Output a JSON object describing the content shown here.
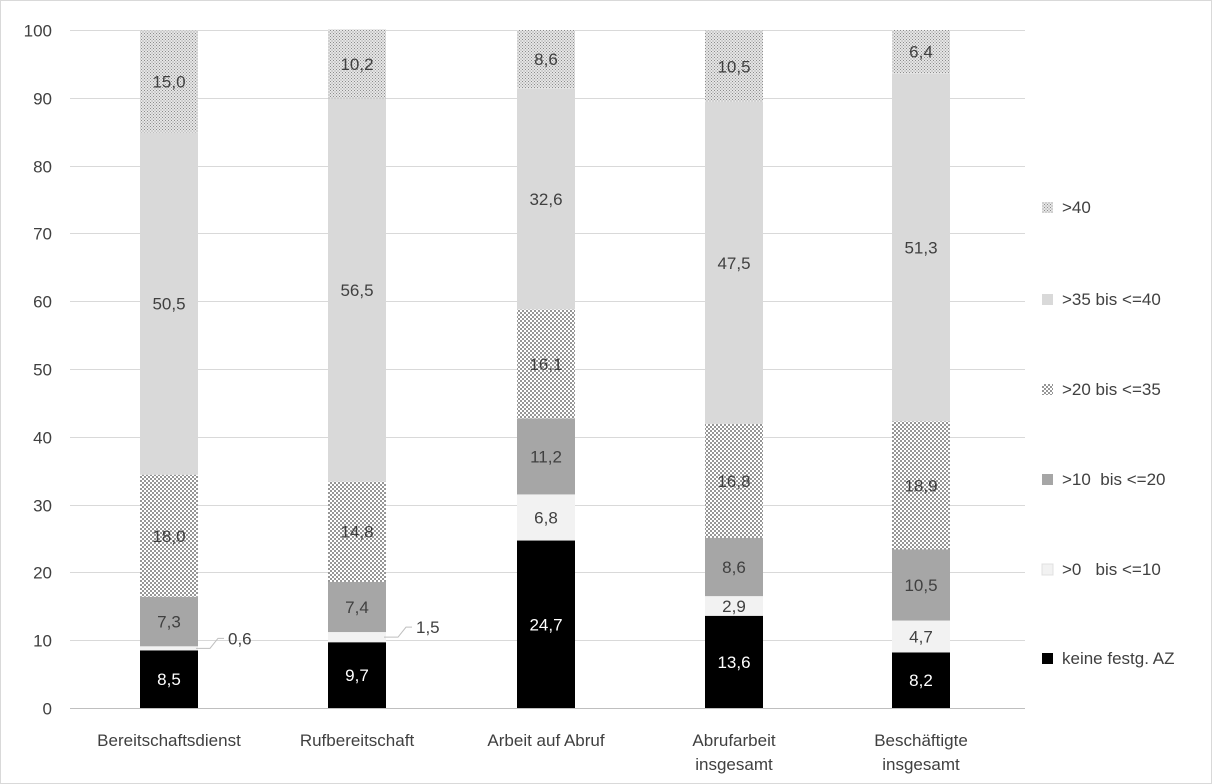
{
  "chart_data": {
    "type": "bar",
    "stacked": true,
    "title": "",
    "xlabel": "",
    "ylabel": "",
    "ylim": [
      0,
      100
    ],
    "yticks": [
      0,
      10,
      20,
      30,
      40,
      50,
      60,
      70,
      80,
      90,
      100
    ],
    "grid": true,
    "legend_position": "right",
    "categories": [
      [
        "Bereitschaftsdienst"
      ],
      [
        "Rufbereitschaft"
      ],
      [
        "Arbeit auf Abruf"
      ],
      [
        "Abrufarbeit",
        "insgesamt"
      ],
      [
        "Beschäftigte",
        "insgesamt"
      ]
    ],
    "series": [
      {
        "name": "keine festg. AZ",
        "color": "#000000",
        "pattern": "solid",
        "label_color": "#ffffff",
        "values": [
          8.5,
          9.7,
          24.7,
          13.6,
          8.2
        ],
        "labels": [
          "8,5",
          "9,7",
          "24,7",
          "13,6",
          "8,2"
        ]
      },
      {
        "name": ">0   bis <=10",
        "color": "#f2f2f2",
        "pattern": "solid",
        "label_color": "#404040",
        "values": [
          0.6,
          1.5,
          6.8,
          2.9,
          4.7
        ],
        "labels": [
          "0,6",
          "1,5",
          "6,8",
          "2,9",
          "4,7"
        ]
      },
      {
        "name": ">10  bis <=20",
        "color": "#a6a6a6",
        "pattern": "solid",
        "label_color": "#404040",
        "values": [
          7.3,
          7.4,
          11.2,
          8.6,
          10.5
        ],
        "labels": [
          "7,3",
          "7,4",
          "11,2",
          "8,6",
          "10,5"
        ]
      },
      {
        "name": ">20 bis <=35",
        "color": "#ffffff",
        "pattern": "dots",
        "label_color": "#404040",
        "values": [
          18.0,
          14.8,
          16.1,
          16.8,
          18.9
        ],
        "labels": [
          "18,0",
          "14,8",
          "16,1",
          "16,8",
          "18,9"
        ]
      },
      {
        "name": ">35 bis <=40",
        "color": "#d9d9d9",
        "pattern": "solid",
        "label_color": "#404040",
        "values": [
          50.5,
          56.5,
          32.6,
          47.5,
          51.3
        ],
        "labels": [
          "50,5",
          "56,5",
          "32,6",
          "47,5",
          "51,3"
        ]
      },
      {
        "name": ">40",
        "color": "#ffffff",
        "pattern": "crosshatch",
        "label_color": "#404040",
        "values": [
          15.0,
          10.2,
          8.6,
          10.5,
          6.4
        ],
        "labels": [
          "15,0",
          "10,2",
          "8,6",
          "10,5",
          "6,4"
        ]
      }
    ],
    "outside_labels": [
      {
        "category_index": 0,
        "series_index": 1
      },
      {
        "category_index": 1,
        "series_index": 1
      }
    ]
  }
}
